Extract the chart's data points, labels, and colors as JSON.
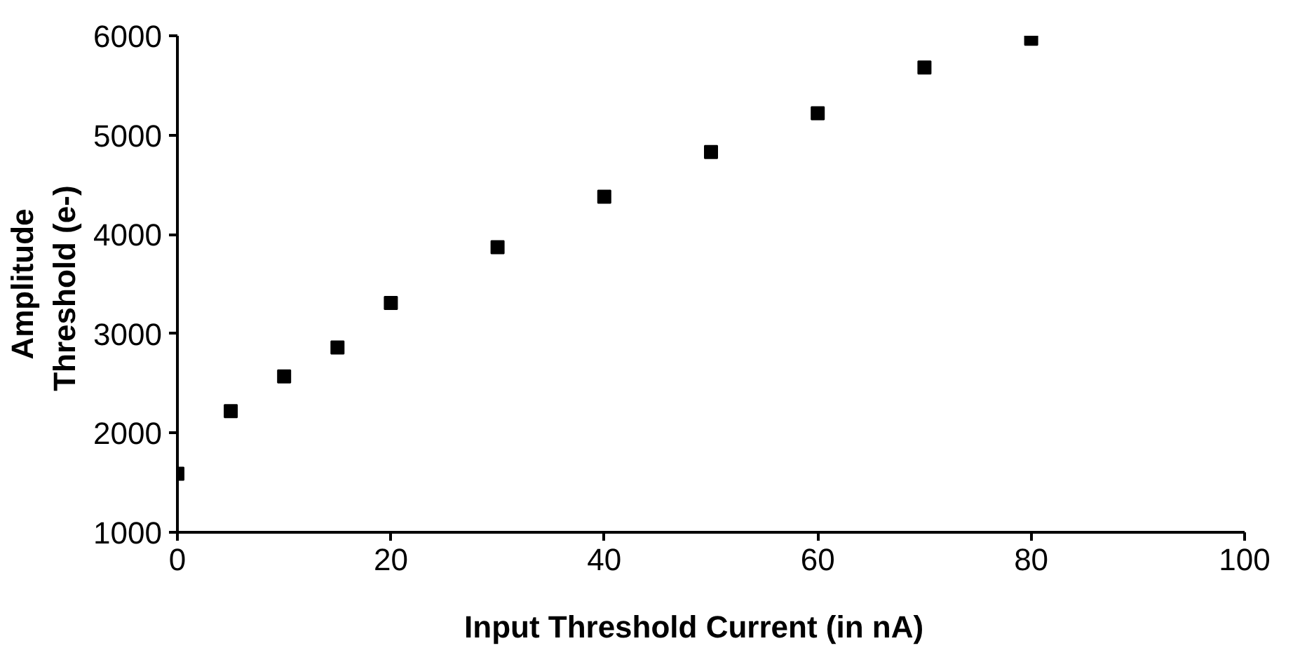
{
  "chart_data": {
    "type": "scatter",
    "xlabel": "Input  Threshold  Current  (in  nA)",
    "ylabel": "Amplitude\nThreshold  (e-)",
    "x": [
      0,
      5,
      10,
      15,
      20,
      30,
      40,
      50,
      60,
      70,
      80
    ],
    "series": [
      {
        "color": "#000000",
        "values": [
          1590,
          2220,
          2570,
          2860,
          3310,
          3870,
          4380,
          4830,
          5220,
          5680,
          5970
        ]
      }
    ],
    "xlim": [
      0,
      100
    ],
    "ylim": [
      1000,
      6000
    ],
    "xticks": [
      0,
      20,
      40,
      60,
      80,
      100
    ],
    "yticks": [
      1000,
      2000,
      3000,
      4000,
      5000,
      6000
    ],
    "grid": false,
    "marker": "square"
  }
}
